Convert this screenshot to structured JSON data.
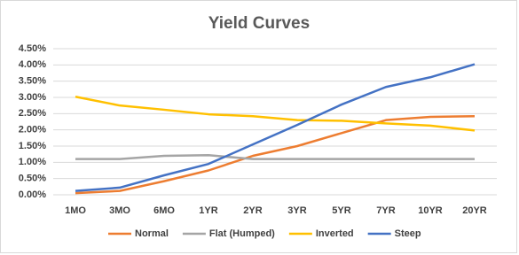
{
  "chart_data": {
    "type": "line",
    "title": "Yield Curves",
    "categories": [
      "1MO",
      "3MO",
      "6MO",
      "1YR",
      "2YR",
      "3YR",
      "5YR",
      "7YR",
      "10YR",
      "20YR"
    ],
    "series": [
      {
        "name": "Normal",
        "color": "#ed7d31",
        "values": [
          0.05,
          0.12,
          0.42,
          0.75,
          1.2,
          1.5,
          1.9,
          2.3,
          2.4,
          2.42
        ]
      },
      {
        "name": "Flat (Humped)",
        "color": "#a5a5a5",
        "values": [
          1.1,
          1.1,
          1.2,
          1.22,
          1.1,
          1.1,
          1.1,
          1.1,
          1.1,
          1.1
        ]
      },
      {
        "name": "Inverted",
        "color": "#ffc000",
        "values": [
          3.02,
          2.75,
          2.62,
          2.48,
          2.42,
          2.3,
          2.28,
          2.2,
          2.13,
          1.98
        ]
      },
      {
        "name": "Steep",
        "color": "#4472c4",
        "values": [
          0.12,
          0.22,
          0.6,
          0.95,
          1.55,
          2.15,
          2.78,
          3.32,
          3.62,
          4.02
        ]
      }
    ],
    "ylim": [
      0,
      4.5
    ],
    "yticks": [
      {
        "value": 0,
        "label": "0.00%"
      },
      {
        "value": 0.5,
        "label": "0.50%"
      },
      {
        "value": 1,
        "label": "1.00%"
      },
      {
        "value": 1.5,
        "label": "1.50%"
      },
      {
        "value": 2,
        "label": "2.00%"
      },
      {
        "value": 2.5,
        "label": "2.50%"
      },
      {
        "value": 3,
        "label": "3.00%"
      },
      {
        "value": 3.5,
        "label": "3.50%"
      },
      {
        "value": 4,
        "label": "4.00%"
      },
      {
        "value": 4.5,
        "label": "4.50%"
      }
    ],
    "grid": true,
    "legend": "bottom"
  }
}
